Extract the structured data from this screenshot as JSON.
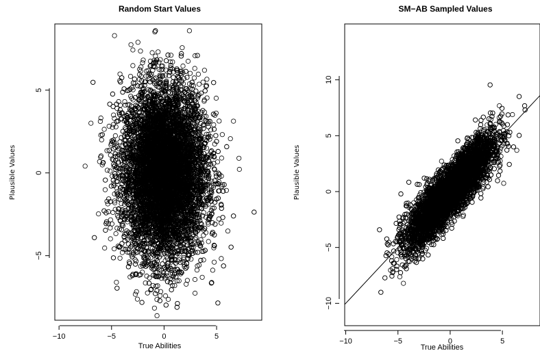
{
  "chart_data": [
    {
      "type": "scatter",
      "title": "Random Start Values",
      "xlabel": "True Abilities",
      "ylabel": "Plausible Values",
      "xlim": [
        -10.4,
        9.3
      ],
      "ylim": [
        -8.9,
        9.0
      ],
      "xticks": [
        -10,
        -5,
        0,
        5
      ],
      "yticks": [
        -5,
        0,
        5
      ],
      "x_tick_labels": [
        "−10",
        "−5",
        "0",
        "5"
      ],
      "y_tick_labels": [
        "−5",
        "0",
        "5"
      ],
      "point_cloud": {
        "x_center": 0.0,
        "y_center": 0.0,
        "x_sd": 2.0,
        "y_sd": 2.6,
        "correlation": 0.0,
        "count": 9000
      },
      "reference_line": null,
      "grid": false,
      "legend": null
    },
    {
      "type": "scatter",
      "title": "SM−AB Sampled Values",
      "xlabel": "True Abilities",
      "ylabel": "Plausible Values",
      "xlim": [
        -10.1,
        8.6
      ],
      "ylim": [
        -12.0,
        15.0
      ],
      "xticks": [
        -10,
        -5,
        0,
        5
      ],
      "yticks": [
        -10,
        -5,
        0,
        5,
        10
      ],
      "x_tick_labels": [
        "−10",
        "−5",
        "0",
        "5"
      ],
      "y_tick_labels": [
        "−10",
        "−5",
        "0",
        "5",
        "10"
      ],
      "point_cloud": {
        "x_center": 0.0,
        "y_center": 0.0,
        "x_sd": 2.0,
        "residual_sd": 1.0,
        "slope": 1.0,
        "count": 9000
      },
      "reference_line": {
        "intercept": 0,
        "slope": 1
      },
      "grid": false,
      "legend": null
    }
  ]
}
